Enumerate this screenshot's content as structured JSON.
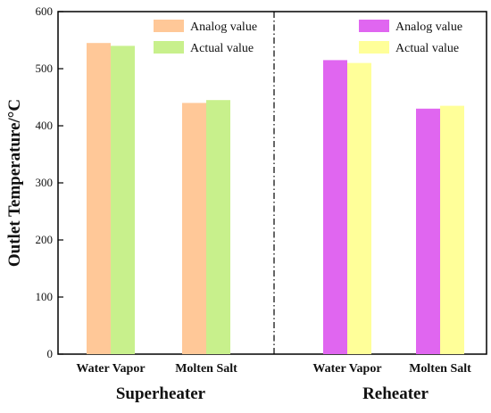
{
  "chart_data": {
    "type": "bar",
    "ylabel": "Outlet Temperature/°C",
    "ylim": [
      0,
      600
    ],
    "yticks": [
      0,
      100,
      200,
      300,
      400,
      500,
      600
    ],
    "grid": false,
    "groups": [
      {
        "name": "Superheater",
        "categories": [
          "Water Vapor",
          "Molten Salt"
        ],
        "series": [
          {
            "name": "Analog value",
            "color": "#ffc898",
            "values": [
              545,
              440
            ]
          },
          {
            "name": "Actual value",
            "color": "#c8f08c",
            "values": [
              540,
              445
            ]
          }
        ],
        "legend_position": "top-right"
      },
      {
        "name": "Reheater",
        "categories": [
          "Water Vapor",
          "Molten Salt"
        ],
        "series": [
          {
            "name": "Analog value",
            "color": "#e066f0",
            "values": [
              515,
              430
            ]
          },
          {
            "name": "Actual value",
            "color": "#ffff99",
            "values": [
              510,
              435
            ]
          }
        ],
        "legend_position": "top-right"
      }
    ],
    "divider": "dash-dot vertical line between groups"
  }
}
